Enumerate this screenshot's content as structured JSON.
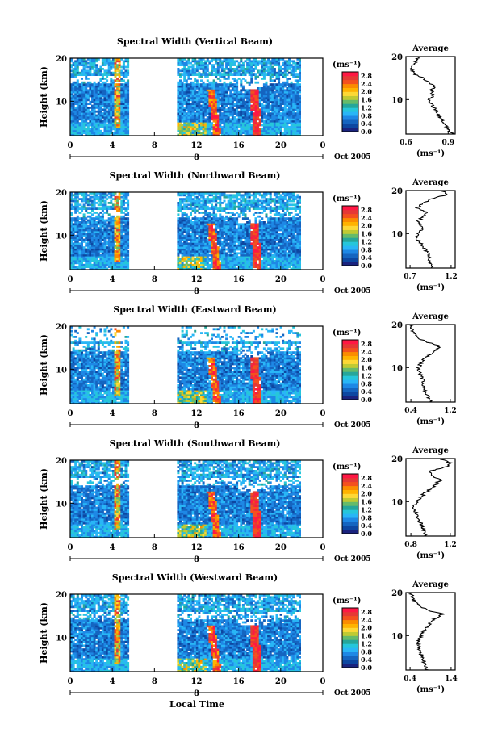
{
  "figure": {
    "colors": {
      "colormap": [
        "#1a237e",
        "#0d47a1",
        "#1565c0",
        "#1e88e5",
        "#29b6f6",
        "#26c6da",
        "#26a69a",
        "#66bb6a",
        "#c0ca33",
        "#fdd835",
        "#ffb300",
        "#fb8c00",
        "#f4511e",
        "#e53935",
        "#ff1744"
      ],
      "missing": "#ffffff",
      "axis": "#000000"
    }
  },
  "chart_data": [
    {
      "type": "heatmap",
      "title": "Spectral Width (Vertical Beam)",
      "ylabel": "Height (km)",
      "xlabel": "",
      "x_ticks": [
        "0",
        "4",
        "8",
        "12",
        "16",
        "20",
        "0"
      ],
      "x_range": [
        0,
        24
      ],
      "y_range": [
        2,
        20
      ],
      "y_ticks": [
        "20",
        "10"
      ],
      "date_day": "8",
      "date_label": "Oct 2005",
      "data_gap_hours": [
        5.6,
        10.2
      ],
      "colorbar": {
        "unit": "(ms⁻¹)",
        "ticks": [
          "2.8",
          "2.4",
          "2.0",
          "1.6",
          "1.2",
          "0.8",
          "0.4",
          "0.0"
        ],
        "range": [
          0,
          3.0
        ]
      },
      "average_profile": {
        "title": "Average",
        "xlabel": "(ms⁻¹)",
        "x_ticks": [
          "0.6",
          "0.9"
        ],
        "x_range": [
          0.6,
          0.95
        ],
        "y_ticks": [
          "20",
          "10"
        ],
        "y_range": [
          2,
          20
        ],
        "heights_km": [
          2,
          3,
          4,
          5,
          6,
          7,
          8,
          9,
          10,
          11,
          12,
          13,
          14,
          15,
          16,
          17,
          18,
          19,
          20
        ],
        "values": [
          0.93,
          0.9,
          0.88,
          0.86,
          0.84,
          0.82,
          0.8,
          0.78,
          0.77,
          0.79,
          0.78,
          0.8,
          0.76,
          0.72,
          0.66,
          0.64,
          0.65,
          0.67,
          0.7
        ]
      }
    },
    {
      "type": "heatmap",
      "title": "Spectral Width (Northward Beam)",
      "ylabel": "Height (km)",
      "xlabel": "",
      "x_ticks": [
        "0",
        "4",
        "8",
        "12",
        "16",
        "20",
        "0"
      ],
      "x_range": [
        0,
        24
      ],
      "y_range": [
        2,
        20
      ],
      "y_ticks": [
        "20",
        "10"
      ],
      "date_day": "8",
      "date_label": "Oct 2005",
      "data_gap_hours": [
        5.6,
        10.2
      ],
      "colorbar": {
        "unit": "(ms⁻¹)",
        "ticks": [
          "2.8",
          "2.4",
          "2.0",
          "1.6",
          "1.2",
          "0.8",
          "0.4",
          "0.0"
        ],
        "range": [
          0,
          3.0
        ]
      },
      "average_profile": {
        "title": "Average",
        "xlabel": "(ms⁻¹)",
        "x_ticks": [
          "0.7",
          "1.2"
        ],
        "x_range": [
          0.65,
          1.25
        ],
        "y_ticks": [
          "20",
          "10"
        ],
        "y_range": [
          2,
          20
        ],
        "heights_km": [
          2,
          3,
          4,
          5,
          6,
          7,
          8,
          9,
          10,
          11,
          12,
          13,
          14,
          15,
          16,
          17,
          18,
          19,
          20
        ],
        "values": [
          0.97,
          0.95,
          0.94,
          0.92,
          0.9,
          0.86,
          0.82,
          0.78,
          0.8,
          0.84,
          0.82,
          0.8,
          0.86,
          0.9,
          0.78,
          0.85,
          0.95,
          1.15,
          1.1
        ]
      }
    },
    {
      "type": "heatmap",
      "title": "Spectral Width (Eastward Beam)",
      "ylabel": "Height (km)",
      "xlabel": "",
      "x_ticks": [
        "0",
        "4",
        "8",
        "12",
        "16",
        "20",
        "0"
      ],
      "x_range": [
        0,
        24
      ],
      "y_range": [
        2,
        20
      ],
      "y_ticks": [
        "20",
        "10"
      ],
      "date_day": "8",
      "date_label": "Oct 2005",
      "data_gap_hours": [
        5.6,
        10.2
      ],
      "colorbar": {
        "unit": "(ms⁻¹)",
        "ticks": [
          "2.8",
          "2.4",
          "2.0",
          "1.6",
          "1.2",
          "0.8",
          "0.4",
          "0.0"
        ],
        "range": [
          0,
          3.0
        ]
      },
      "average_profile": {
        "title": "Average",
        "xlabel": "(ms⁻¹)",
        "x_ticks": [
          "0.4",
          "1.2"
        ],
        "x_range": [
          0.3,
          1.3
        ],
        "y_ticks": [
          "20",
          "10"
        ],
        "y_range": [
          2,
          20
        ],
        "heights_km": [
          2,
          3,
          4,
          5,
          6,
          7,
          8,
          9,
          10,
          11,
          12,
          13,
          14,
          15,
          16,
          17,
          18,
          19,
          20
        ],
        "values": [
          0.8,
          0.76,
          0.72,
          0.68,
          0.64,
          0.66,
          0.62,
          0.58,
          0.56,
          0.6,
          0.68,
          0.78,
          0.9,
          1.0,
          0.7,
          0.55,
          0.45,
          0.42,
          0.4
        ]
      }
    },
    {
      "type": "heatmap",
      "title": "Spectral Width (Southward Beam)",
      "ylabel": "Height (km)",
      "xlabel": "",
      "x_ticks": [
        "0",
        "4",
        "8",
        "12",
        "16",
        "20",
        "0"
      ],
      "x_range": [
        0,
        24
      ],
      "y_range": [
        2,
        20
      ],
      "y_ticks": [
        "20",
        "10"
      ],
      "date_day": "8",
      "date_label": "Oct 2005",
      "data_gap_hours": [
        5.6,
        10.2
      ],
      "colorbar": {
        "unit": "(ms⁻¹)",
        "ticks": [
          "2.8",
          "2.4",
          "2.0",
          "1.6",
          "1.2",
          "0.8",
          "0.4",
          "0.0"
        ],
        "range": [
          0,
          3.0
        ]
      },
      "average_profile": {
        "title": "Average",
        "xlabel": "(ms⁻¹)",
        "x_ticks": [
          "0.8",
          "1.2"
        ],
        "x_range": [
          0.75,
          1.25
        ],
        "y_ticks": [
          "20",
          "10"
        ],
        "y_range": [
          2,
          20
        ],
        "heights_km": [
          2,
          3,
          4,
          5,
          6,
          7,
          8,
          9,
          10,
          11,
          12,
          13,
          14,
          15,
          16,
          17,
          18,
          19,
          20
        ],
        "values": [
          0.95,
          0.93,
          0.92,
          0.9,
          0.88,
          0.86,
          0.84,
          0.82,
          0.86,
          0.9,
          0.94,
          1.0,
          1.05,
          1.1,
          1.02,
          0.98,
          1.15,
          1.2,
          1.1
        ]
      }
    },
    {
      "type": "heatmap",
      "title": "Spectral Width (Westward Beam)",
      "ylabel": "Height (km)",
      "xlabel": "Local Time",
      "x_ticks": [
        "0",
        "4",
        "8",
        "12",
        "16",
        "20",
        "0"
      ],
      "x_range": [
        0,
        24
      ],
      "y_range": [
        2,
        20
      ],
      "y_ticks": [
        "20",
        "10"
      ],
      "date_day": "8",
      "date_label": "Oct 2005",
      "data_gap_hours": [
        5.6,
        10.2
      ],
      "colorbar": {
        "unit": "(ms⁻¹)",
        "ticks": [
          "2.8",
          "2.4",
          "2.0",
          "1.6",
          "1.2",
          "0.8",
          "0.4",
          "0.0"
        ],
        "range": [
          0,
          3.0
        ]
      },
      "average_profile": {
        "title": "Average",
        "xlabel": "(ms⁻¹)",
        "x_ticks": [
          "0.4",
          "1.4"
        ],
        "x_range": [
          0.3,
          1.5
        ],
        "y_ticks": [
          "20",
          "10"
        ],
        "y_range": [
          2,
          20
        ],
        "heights_km": [
          2,
          3,
          4,
          5,
          6,
          7,
          8,
          9,
          10,
          11,
          12,
          13,
          14,
          15,
          16,
          17,
          18,
          19,
          20
        ],
        "values": [
          0.82,
          0.78,
          0.74,
          0.7,
          0.66,
          0.62,
          0.6,
          0.62,
          0.66,
          0.72,
          0.8,
          0.9,
          1.0,
          1.2,
          0.8,
          0.6,
          0.5,
          0.45,
          0.42
        ]
      }
    }
  ]
}
